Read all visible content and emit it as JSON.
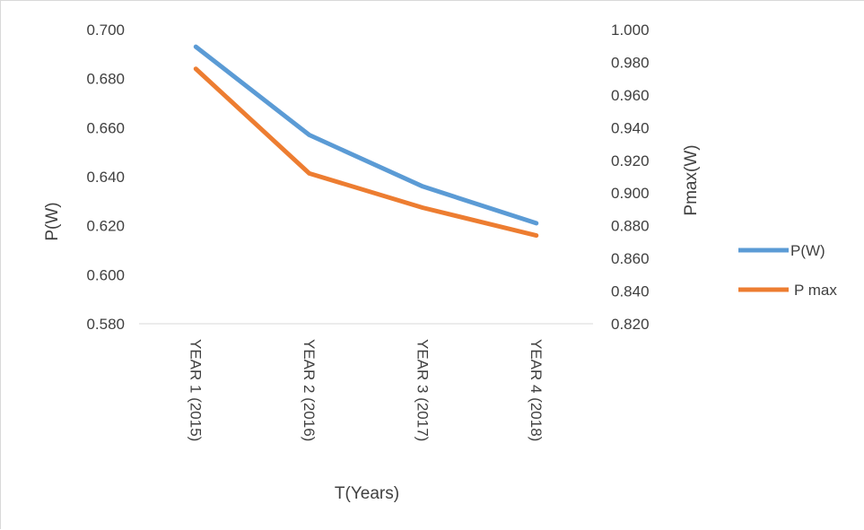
{
  "chart_data": {
    "type": "line",
    "categories": [
      "YEAR  1 (2015)",
      "YEAR  2 (2016)",
      "YEAR  3 (2017)",
      "YEAR  4 (2018)"
    ],
    "series": [
      {
        "name": "P(W)",
        "axis": "left",
        "color": "#5b9bd5",
        "values": [
          0.693,
          0.657,
          0.636,
          0.621
        ]
      },
      {
        "name": "P max",
        "axis": "right",
        "color": "#ed7d31",
        "values": [
          0.976,
          0.912,
          0.891,
          0.874
        ]
      }
    ],
    "xlabel": "T(Years)",
    "ylabel": "P(W)",
    "y2label": "Pmax(W)",
    "ylim": [
      0.58,
      0.7
    ],
    "y2lim": [
      0.82,
      1.0
    ],
    "yticks": [
      "0.580",
      "0.600",
      "0.620",
      "0.640",
      "0.660",
      "0.680",
      "0.700"
    ],
    "y2ticks": [
      "0.820",
      "0.840",
      "0.860",
      "0.880",
      "0.900",
      "0.920",
      "0.940",
      "0.960",
      "0.980",
      "1.000"
    ],
    "grid": false,
    "legend_position": "right"
  }
}
